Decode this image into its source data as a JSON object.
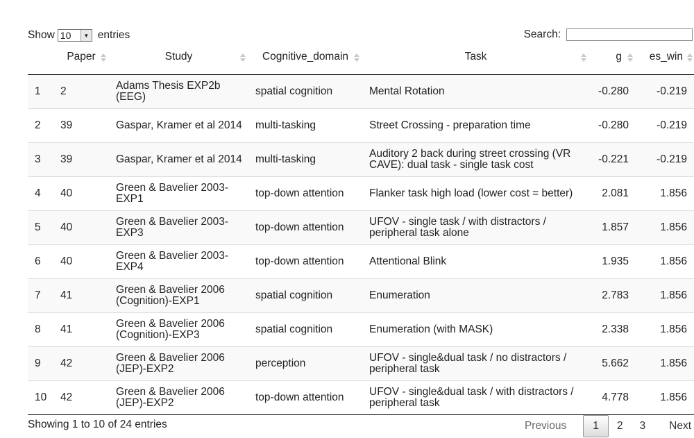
{
  "length": {
    "show_label": "Show",
    "value": "10",
    "entries_label": "entries"
  },
  "search": {
    "label": "Search:",
    "value": ""
  },
  "columns": [
    "",
    "Paper",
    "Study",
    "Cognitive_domain",
    "Task",
    "g",
    "es_win"
  ],
  "rows": [
    {
      "idx": "1",
      "paper": "2",
      "study": "Adams Thesis EXP2b (EEG)",
      "domain": "spatial cognition",
      "task": "Mental Rotation",
      "g": "-0.280",
      "es_win": "-0.219"
    },
    {
      "idx": "2",
      "paper": "39",
      "study": "Gaspar, Kramer et al 2014",
      "domain": "multi-tasking",
      "task": "Street Crossing - preparation time",
      "g": "-0.280",
      "es_win": "-0.219"
    },
    {
      "idx": "3",
      "paper": "39",
      "study": "Gaspar, Kramer et al 2014",
      "domain": "multi-tasking",
      "task": "Auditory 2 back during street crossing (VR CAVE): dual task - single task cost",
      "g": "-0.221",
      "es_win": "-0.219"
    },
    {
      "idx": "4",
      "paper": "40",
      "study": "Green & Bavelier 2003-EXP1",
      "domain": "top-down attention",
      "task": "Flanker task high load (lower cost = better)",
      "g": "2.081",
      "es_win": "1.856"
    },
    {
      "idx": "5",
      "paper": "40",
      "study": "Green & Bavelier 2003-EXP3",
      "domain": "top-down attention",
      "task": "UFOV - single task / with distractors / peripheral task alone",
      "g": "1.857",
      "es_win": "1.856"
    },
    {
      "idx": "6",
      "paper": "40",
      "study": "Green & Bavelier 2003-EXP4",
      "domain": "top-down attention",
      "task": "Attentional Blink",
      "g": "1.935",
      "es_win": "1.856"
    },
    {
      "idx": "7",
      "paper": "41",
      "study": "Green & Bavelier 2006 (Cognition)-EXP1",
      "domain": "spatial cognition",
      "task": "Enumeration",
      "g": "2.783",
      "es_win": "1.856"
    },
    {
      "idx": "8",
      "paper": "41",
      "study": "Green & Bavelier 2006 (Cognition)-EXP3",
      "domain": "spatial cognition",
      "task": "Enumeration (with MASK)",
      "g": "2.338",
      "es_win": "1.856"
    },
    {
      "idx": "9",
      "paper": "42",
      "study": "Green & Bavelier 2006 (JEP)-EXP2",
      "domain": "perception",
      "task": "UFOV - single&dual task / no distractors / peripheral task",
      "g": "5.662",
      "es_win": "1.856"
    },
    {
      "idx": "10",
      "paper": "42",
      "study": "Green & Bavelier 2006 (JEP)-EXP2",
      "domain": "top-down attention",
      "task": "UFOV - single&dual task / with distractors / peripheral task",
      "g": "4.778",
      "es_win": "1.856"
    }
  ],
  "info": "Showing 1 to 10 of 24 entries",
  "pagination": {
    "previous": "Previous",
    "pages": [
      "1",
      "2",
      "3"
    ],
    "current": "1",
    "next": "Next"
  }
}
